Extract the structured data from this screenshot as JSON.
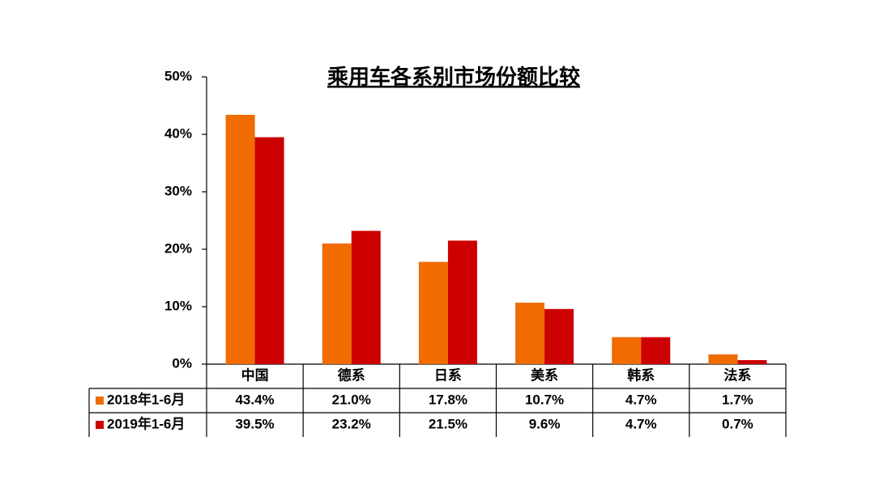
{
  "chart_data": {
    "type": "bar",
    "title": "乘用车各系别市场份额比较",
    "categories": [
      "中国",
      "德系",
      "日系",
      "美系",
      "韩系",
      "法系"
    ],
    "series": [
      {
        "name": "2018年1-6月",
        "color": "#f06c00",
        "values": [
          43.4,
          21.0,
          17.8,
          10.7,
          4.7,
          1.7
        ],
        "value_labels": [
          "43.4%",
          "21.0%",
          "17.8%",
          "10.7%",
          "4.7%",
          "1.7%"
        ]
      },
      {
        "name": "2019年1-6月",
        "color": "#cc0000",
        "values": [
          39.5,
          23.2,
          21.5,
          9.6,
          4.7,
          0.7
        ],
        "value_labels": [
          "39.5%",
          "23.2%",
          "21.5%",
          "9.6%",
          "4.7%",
          "0.7%"
        ]
      }
    ],
    "ylim": [
      0,
      50
    ],
    "yticks": [
      {
        "value": 0,
        "label": "0%"
      },
      {
        "value": 10,
        "label": "10%"
      },
      {
        "value": 20,
        "label": "20%"
      },
      {
        "value": 30,
        "label": "30%"
      },
      {
        "value": 40,
        "label": "40%"
      },
      {
        "value": 50,
        "label": "50%"
      }
    ]
  }
}
